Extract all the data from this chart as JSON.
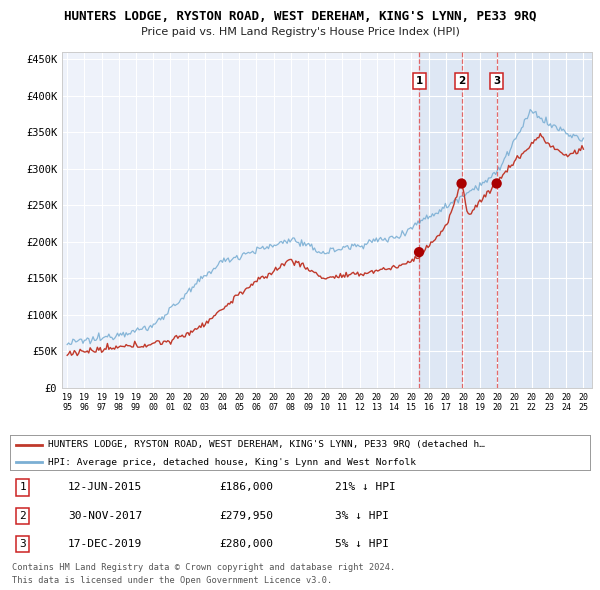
{
  "title": "HUNTERS LODGE, RYSTON ROAD, WEST DEREHAM, KING'S LYNN, PE33 9RQ",
  "subtitle": "Price paid vs. HM Land Registry's House Price Index (HPI)",
  "ylim": [
    0,
    460000
  ],
  "yticks": [
    0,
    50000,
    100000,
    150000,
    200000,
    250000,
    300000,
    350000,
    400000,
    450000
  ],
  "ytick_labels": [
    "£0",
    "£50K",
    "£100K",
    "£150K",
    "£200K",
    "£250K",
    "£300K",
    "£350K",
    "£400K",
    "£450K"
  ],
  "hpi_color": "#7bafd4",
  "price_color": "#c0392b",
  "point_color": "#aa0000",
  "sale1_date": 2015.45,
  "sale1_price": 186000,
  "sale2_date": 2017.92,
  "sale2_price": 279950,
  "sale3_date": 2019.96,
  "sale3_price": 280000,
  "vline_color": "#e05050",
  "bg_color": "#ffffff",
  "plot_bg": "#eef2fa",
  "shade_color": "#d0ddf0",
  "shade_alpha": 0.5,
  "legend_label_red": "HUNTERS LODGE, RYSTON ROAD, WEST DEREHAM, KING'S LYNN, PE33 9RQ (detached h…",
  "legend_label_blue": "HPI: Average price, detached house, King's Lynn and West Norfolk",
  "table_rows": [
    {
      "num": "1",
      "date": "12-JUN-2015",
      "price": "£186,000",
      "hpi": "21% ↓ HPI"
    },
    {
      "num": "2",
      "date": "30-NOV-2017",
      "price": "£279,950",
      "hpi": "3% ↓ HPI"
    },
    {
      "num": "3",
      "date": "17-DEC-2019",
      "price": "£280,000",
      "hpi": "5% ↓ HPI"
    }
  ],
  "footer1": "Contains HM Land Registry data © Crown copyright and database right 2024.",
  "footer2": "This data is licensed under the Open Government Licence v3.0."
}
